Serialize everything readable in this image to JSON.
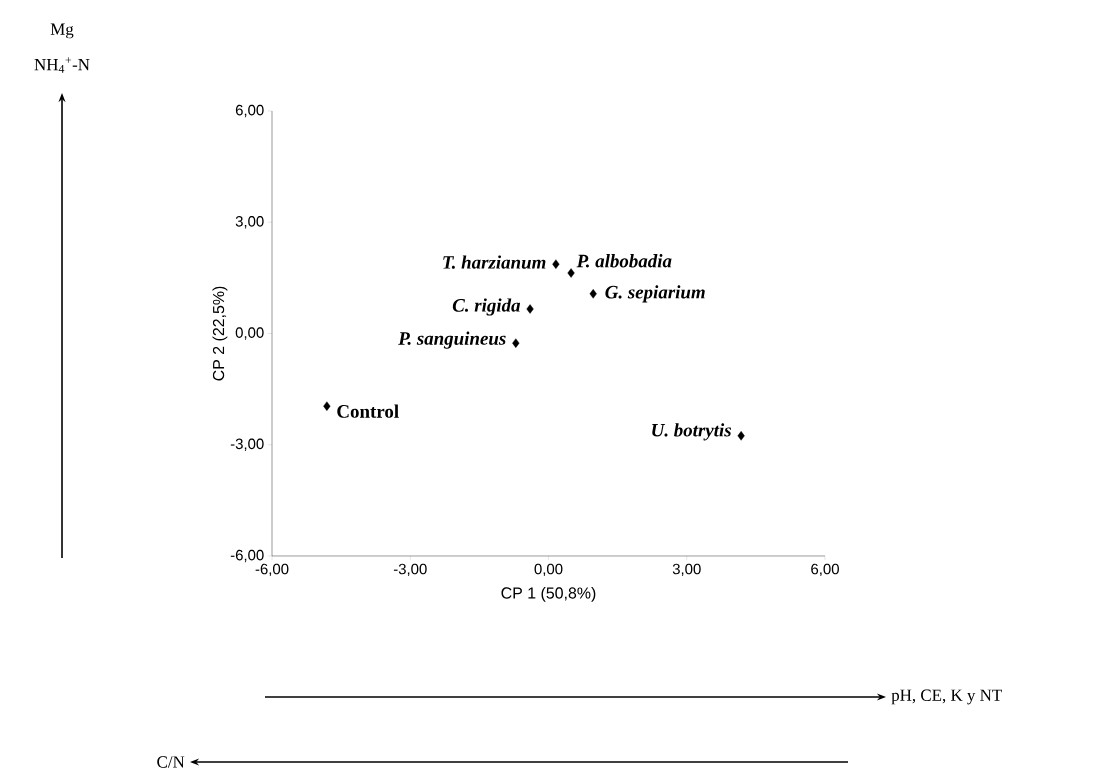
{
  "chart_data": {
    "type": "scatter",
    "xlabel": "CP 1 (50,8%)",
    "ylabel": "CP 2 (22,5%)",
    "x": [
      0.16,
      0.49,
      0.97,
      -0.4,
      -0.71,
      -4.81,
      4.18
    ],
    "values": [
      1.87,
      1.63,
      1.07,
      0.66,
      -0.26,
      -1.96,
      -2.76
    ],
    "color": "#000000",
    "marker": "diamond",
    "grid": false,
    "xlim": [
      -6,
      6
    ],
    "ylim": [
      -6,
      6
    ],
    "xticks": [
      {
        "value": -6,
        "label": "-6,00"
      },
      {
        "value": -3,
        "label": "-3,00"
      },
      {
        "value": 0,
        "label": "0,00"
      },
      {
        "value": 3,
        "label": "3,00"
      },
      {
        "value": 6,
        "label": "6,00"
      }
    ],
    "yticks": [
      {
        "value": -6,
        "label": "-6,00"
      },
      {
        "value": -3,
        "label": "-3,00"
      },
      {
        "value": 0,
        "label": "0,00"
      },
      {
        "value": 3,
        "label": "3,00"
      },
      {
        "value": 6,
        "label": "6,00"
      }
    ],
    "annotations": [
      {
        "text": "*T. harzianum*",
        "x": 0.16,
        "y": 1.87
      },
      {
        "text": "*P. albobadia*",
        "x": 0.49,
        "y": 1.63
      },
      {
        "text": "*G. sepiarium*",
        "x": 0.97,
        "y": 1.07
      },
      {
        "text": "*C. rigida*",
        "x": -0.4,
        "y": 0.66
      },
      {
        "text": "*P. sanguineus*",
        "x": -0.71,
        "y": -0.26
      },
      {
        "text": "Control",
        "x": -4.81,
        "y": -1.96
      },
      {
        "text": "*U. botrytis*",
        "x": 4.18,
        "y": -2.76
      },
      "Mg",
      "NH$_{4}$$^{+}$-N",
      "pH, CE, K y NT",
      "C/N"
    ]
  }
}
